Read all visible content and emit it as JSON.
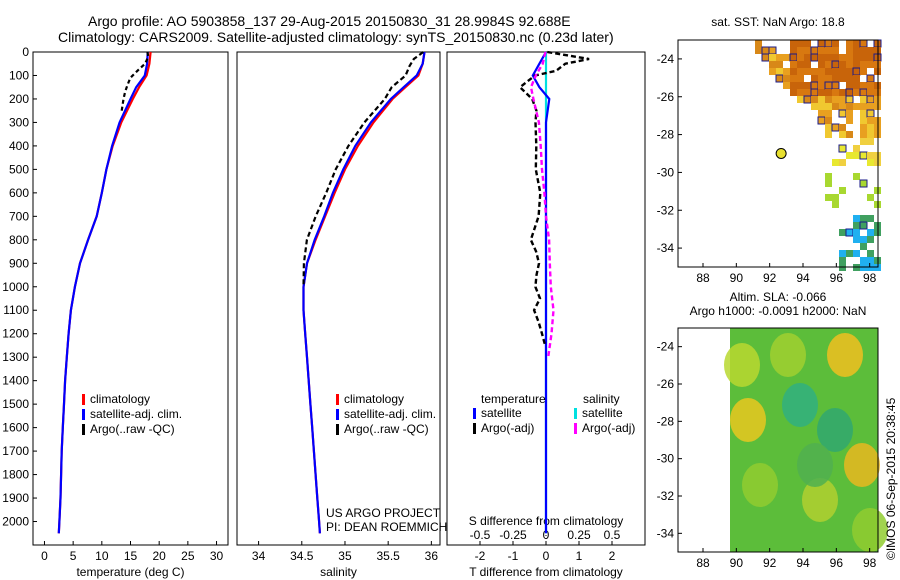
{
  "header": {
    "line1": "Argo profile: AO 5903858_137 29-Aug-2015 20150830_31 28.9984S 92.688E",
    "line2": "Climatology: CARS2009. Satellite-adjusted climatology: synTS_20150830.nc (0.23d later)"
  },
  "watermark": "©IMOS 06-Sep-2015 20:38:45",
  "project": {
    "line1": "US ARGO PROJECT",
    "line2": "PI: DEAN ROEMMICH"
  },
  "colors": {
    "climatology": "#ff0000",
    "satellite": "#0000ff",
    "argo": "#000000",
    "sat_salinity": "#00e0e0",
    "argo_salinity": "#ff00ff"
  },
  "chart_data": [
    {
      "id": "temperature",
      "type": "line",
      "xlabel": "temperature (deg C)",
      "ylabel": "",
      "xlim": [
        -2,
        32
      ],
      "ylim": [
        2100,
        0
      ],
      "xticks": [
        "0",
        "5",
        "10",
        "15",
        "20",
        "25",
        "30"
      ],
      "yticks": [
        "0",
        "100",
        "200",
        "300",
        "400",
        "500",
        "600",
        "700",
        "800",
        "900",
        "1000",
        "1100",
        "1200",
        "1300",
        "1400",
        "1500",
        "1600",
        "1700",
        "1800",
        "1900",
        "2000"
      ],
      "legend": {
        "position": "lower-middle",
        "entries": [
          "climatology",
          "satellite-adj. clim.",
          "Argo(..raw -QC)"
        ]
      },
      "series": [
        {
          "name": "climatology",
          "depth": [
            0,
            50,
            100,
            150,
            200,
            300,
            400,
            500,
            600,
            700,
            800,
            900,
            1000,
            1100,
            1200,
            1300,
            1400,
            1500,
            1600,
            1700,
            1800,
            1900,
            2000,
            2050
          ],
          "values": [
            18.5,
            18.3,
            17.8,
            16.5,
            15.4,
            13.4,
            11.9,
            10.8,
            10.0,
            9.1,
            7.6,
            6.2,
            5.3,
            4.6,
            4.2,
            3.9,
            3.6,
            3.4,
            3.2,
            3.0,
            2.9,
            2.8,
            2.6,
            2.5
          ]
        },
        {
          "name": "satellite-adj. clim.",
          "depth": [
            0,
            50,
            100,
            150,
            200,
            300,
            400,
            500,
            600,
            700,
            800,
            900,
            1000,
            1100,
            1200,
            1300,
            1400,
            1500,
            1600,
            1700,
            1800,
            1900,
            2000,
            2050
          ],
          "values": [
            18.0,
            17.9,
            17.5,
            16.0,
            15.0,
            13.1,
            11.8,
            10.8,
            10.0,
            9.1,
            7.6,
            6.2,
            5.3,
            4.6,
            4.2,
            3.9,
            3.6,
            3.4,
            3.2,
            3.0,
            2.9,
            2.8,
            2.6,
            2.5
          ]
        },
        {
          "name": "Argo(..raw -QC)",
          "depth": [
            0,
            20,
            50,
            80,
            110,
            140,
            170,
            200,
            250
          ],
          "values": [
            17.9,
            18.0,
            17.7,
            16.3,
            15.0,
            14.6,
            14.0,
            13.8,
            13.4
          ]
        }
      ]
    },
    {
      "id": "salinity",
      "type": "line",
      "xlabel": "salinity",
      "ylabel": "",
      "xlim": [
        33.75,
        36.1
      ],
      "ylim": [
        2100,
        0
      ],
      "xticks": [
        "34",
        "34.5",
        "35",
        "35.5",
        "36"
      ],
      "legend": {
        "position": "lower-middle",
        "entries": [
          "climatology",
          "satellite-adj. clim.",
          "Argo(..raw -QC)"
        ]
      },
      "series": [
        {
          "name": "climatology",
          "depth": [
            0,
            50,
            100,
            150,
            200,
            300,
            400,
            500,
            600,
            700,
            800,
            900,
            1000,
            1100,
            1200,
            1300,
            1400,
            1500,
            1600,
            1700,
            1800,
            1900,
            2000,
            2050
          ],
          "values": [
            35.92,
            35.9,
            35.85,
            35.7,
            35.55,
            35.33,
            35.15,
            35.0,
            34.88,
            34.77,
            34.66,
            34.56,
            34.52,
            34.52,
            34.54,
            34.56,
            34.58,
            34.6,
            34.62,
            34.64,
            34.66,
            34.68,
            34.7,
            34.71
          ]
        },
        {
          "name": "satellite-adj. clim.",
          "depth": [
            0,
            50,
            100,
            150,
            200,
            300,
            400,
            500,
            600,
            700,
            800,
            900,
            1000,
            1100,
            1200,
            1300,
            1400,
            1500,
            1600,
            1700,
            1800,
            1900,
            2000,
            2050
          ],
          "values": [
            35.92,
            35.9,
            35.83,
            35.68,
            35.53,
            35.3,
            35.12,
            34.98,
            34.86,
            34.76,
            34.65,
            34.56,
            34.52,
            34.52,
            34.54,
            34.56,
            34.58,
            34.6,
            34.62,
            34.64,
            34.66,
            34.68,
            34.7,
            34.71
          ]
        },
        {
          "name": "Argo(..raw -QC)",
          "depth": [
            0,
            30,
            60,
            100,
            150,
            200,
            300,
            400,
            500,
            600,
            700,
            800,
            900,
            1000
          ],
          "values": [
            35.9,
            35.8,
            35.75,
            35.7,
            35.55,
            35.45,
            35.22,
            35.05,
            34.9,
            34.78,
            34.66,
            34.56,
            34.52,
            34.53
          ]
        }
      ]
    },
    {
      "id": "difference",
      "type": "line",
      "xlabel": "T difference from climatology",
      "xlabel2": "S difference from climatology",
      "xlim": [
        -3,
        3
      ],
      "ylim": [
        2100,
        0
      ],
      "xticks": [
        "-2",
        "-1",
        "0",
        "1",
        "2"
      ],
      "xticks2": [
        "-0.5",
        "-0.25",
        "0",
        "0.25",
        "0.5"
      ],
      "legend": {
        "position": "lower",
        "headers": [
          "temperature",
          "salinity"
        ],
        "entries": [
          "satellite",
          "Argo(-adj)",
          "satellite",
          "Argo(-adj)"
        ]
      },
      "series": [
        {
          "name": "T satellite",
          "depth": [
            0,
            50,
            100,
            150,
            200,
            300,
            400,
            600,
            800,
            1000,
            1500,
            2050
          ],
          "values": [
            0.0,
            -0.2,
            -0.4,
            -0.2,
            0.1,
            0.0,
            0.0,
            0.0,
            0.0,
            0.0,
            0.0,
            0.0
          ]
        },
        {
          "name": "T Argo(-adj)",
          "depth": [
            0,
            30,
            50,
            80,
            100,
            150,
            200,
            250,
            300,
            400,
            500,
            600,
            700,
            800,
            850,
            900,
            950,
            1000,
            1050,
            1100,
            1150,
            1200,
            1250
          ],
          "values": [
            0.0,
            1.3,
            0.6,
            0.3,
            -0.3,
            -0.8,
            -0.4,
            -0.3,
            -0.3,
            -0.3,
            -0.3,
            -0.2,
            -0.25,
            -0.5,
            -0.3,
            -0.2,
            -0.3,
            -0.35,
            -0.2,
            -0.4,
            -0.2,
            -0.1,
            0.0
          ]
        },
        {
          "name": "S satellite",
          "depth": [
            0,
            100,
            200,
            400,
            800,
            1200,
            1600,
            2050
          ],
          "values": [
            0.0,
            0.0,
            0.0,
            0.0,
            0.0,
            0.0,
            0.0,
            0.0
          ]
        },
        {
          "name": "S Argo(-adj)",
          "depth": [
            0,
            50,
            100,
            150,
            200,
            300,
            400,
            500,
            600,
            700,
            800,
            900,
            1000,
            1100,
            1200,
            1300
          ],
          "values": [
            0.0,
            -0.02,
            -0.08,
            -0.12,
            -0.1,
            -0.06,
            -0.04,
            -0.03,
            -0.02,
            0.0,
            0.02,
            0.03,
            0.04,
            0.05,
            0.04,
            0.02
          ]
        }
      ]
    },
    {
      "id": "sst_map",
      "type": "heatmap",
      "title": "sat. SST: NaN Argo: 18.8",
      "xlim": [
        86.5,
        98.5
      ],
      "ylim": [
        -35,
        -23
      ],
      "xticks": [
        "88",
        "90",
        "92",
        "94",
        "96",
        "98"
      ],
      "yticks": [
        "-24",
        "-26",
        "-28",
        "-30",
        "-32",
        "-34"
      ],
      "argo_position": {
        "lon": 92.688,
        "lat": -28.9984
      }
    },
    {
      "id": "sla_map",
      "type": "heatmap",
      "title": "Altim. SLA: -0.066",
      "subtitle": "Argo h1000: -0.0091 h2000: NaN",
      "xlim": [
        86.5,
        98.5
      ],
      "ylim": [
        -35,
        -23
      ],
      "xticks": [
        "88",
        "90",
        "92",
        "94",
        "96",
        "98"
      ],
      "yticks": [
        "-24",
        "-26",
        "-28",
        "-30",
        "-32",
        "-34"
      ]
    }
  ]
}
